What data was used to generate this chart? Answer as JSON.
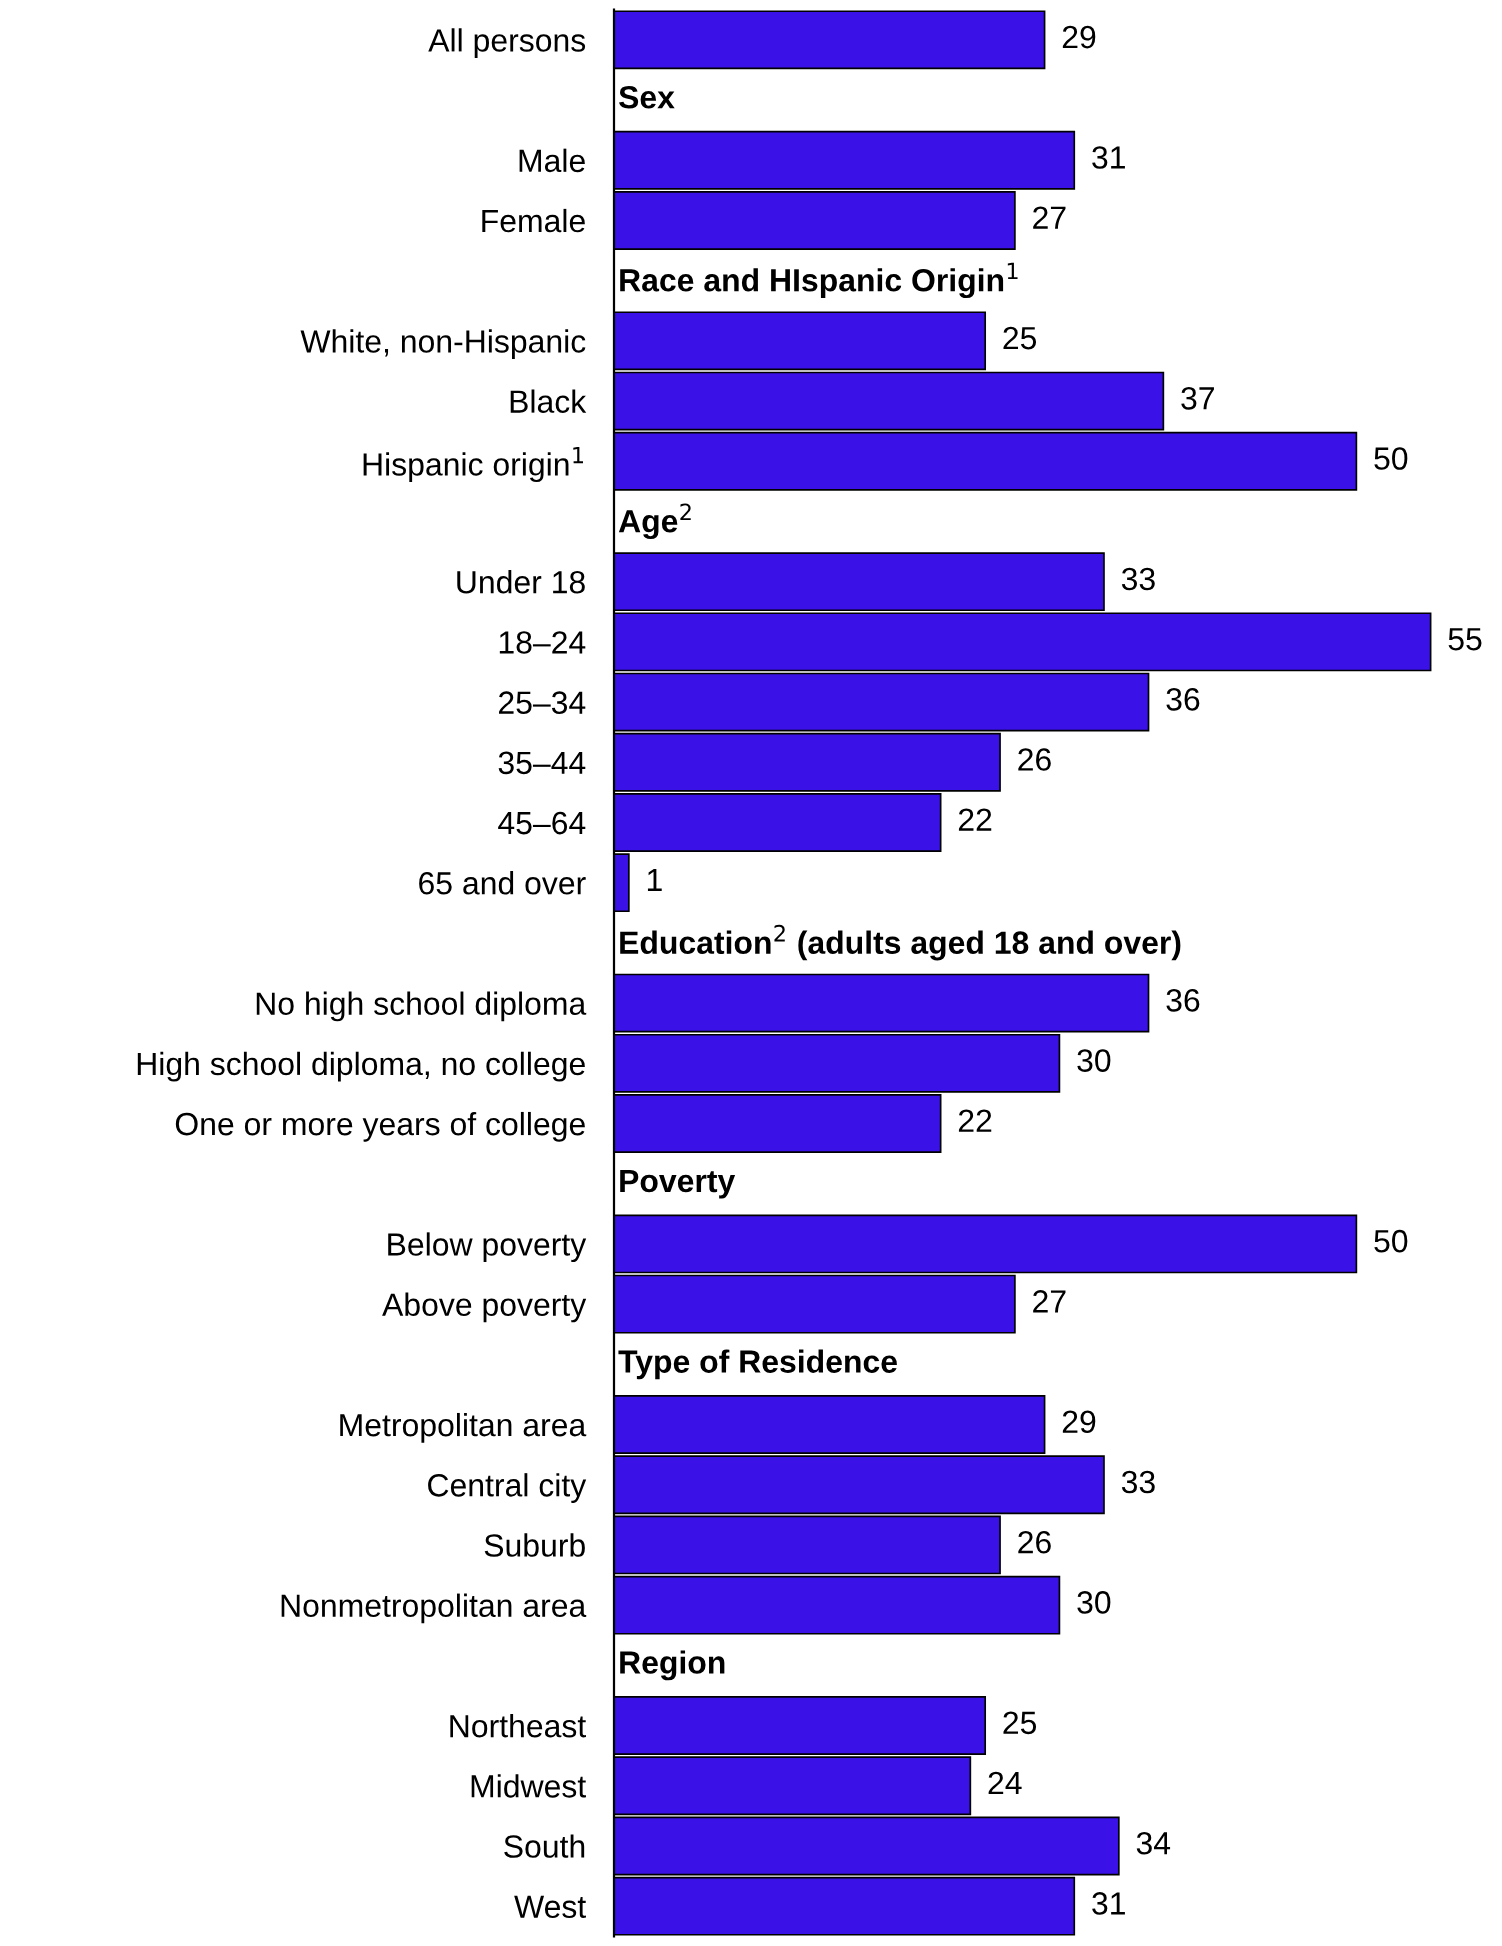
{
  "chart_data": {
    "type": "bar",
    "orientation": "horizontal",
    "data_labels": true,
    "color": "#3a12e8",
    "categories": [
      "All persons",
      "Sex",
      "Male",
      "Female",
      "Race and HIspanic Origin$^{1}$",
      "White, non-Hispanic",
      "Black",
      "Hispanic origin$^{1}$",
      "Age$^{2}$",
      "Under 18",
      "18–24",
      "25–34",
      "35–44",
      "45–64",
      "65 and over",
      "Education$^{2}$ (adults aged 18 and over)",
      "No high school diploma",
      "High school diploma, no college",
      "One or more years of college",
      "Poverty",
      "Below poverty",
      "Above poverty",
      "Type of Residence",
      "Metropolitan area",
      "Central city",
      "Suburb",
      "Nonmetropolitan area",
      "Region",
      "Northeast",
      "Midwest",
      "South",
      "West"
    ],
    "values": [
      29,
      null,
      31,
      27,
      null,
      25,
      37,
      50,
      null,
      33,
      55,
      36,
      26,
      22,
      1,
      null,
      36,
      30,
      22,
      null,
      50,
      27,
      null,
      29,
      33,
      26,
      30,
      null,
      25,
      24,
      34,
      31
    ]
  }
}
